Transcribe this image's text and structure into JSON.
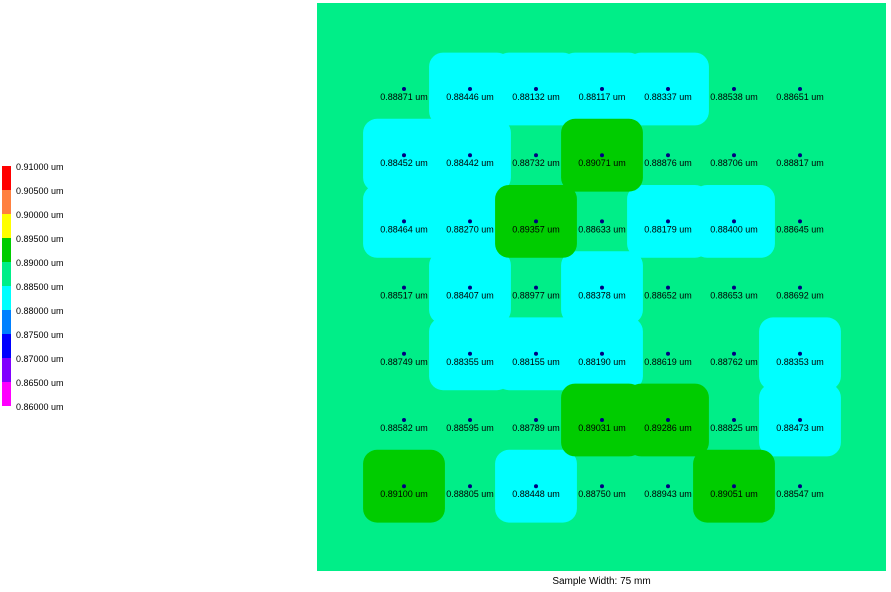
{
  "colors": {
    "scale": [
      "#ff0000",
      "#ff8040",
      "#ffff00",
      "#00cc00",
      "#00ee88",
      "#00ffff",
      "#0080ff",
      "#0000ff",
      "#8000ff",
      "#ff00ff"
    ],
    "point": "#000080"
  },
  "legend": {
    "ticks": [
      "0.91000 um",
      "0.90500 um",
      "0.90000 um",
      "0.89500 um",
      "0.89000 um",
      "0.88500 um",
      "0.88000 um",
      "0.87500 um",
      "0.87000 um",
      "0.86500 um",
      "0.86000 um"
    ]
  },
  "caption": "Sample Width: 75 mm",
  "chart_data": {
    "type": "heatmap",
    "unit": "um",
    "xlabel": "Sample Width: 75 mm",
    "color_scale": [
      0.86,
      0.91
    ],
    "rows": 7,
    "cols": 7,
    "labels": [
      [
        "0.88871 um",
        "0.88446 um",
        "0.88132 um",
        "0.88117 um",
        "0.88337 um",
        "0.88538 um",
        "0.88651 um"
      ],
      [
        "0.88452 um",
        "0.88442 um",
        "0.88732 um",
        "0.89071 um",
        "0.88876 um",
        "0.88706 um",
        "0.88817 um"
      ],
      [
        "0.88464 um",
        "0.88270 um",
        "0.89357 um",
        "0.88633 um",
        "0.88179 um",
        "0.88400 um",
        "0.88645 um"
      ],
      [
        "0.88517 um",
        "0.88407 um",
        "0.88977 um",
        "0.88378 um",
        "0.88652 um",
        "0.88653 um",
        "0.88692 um"
      ],
      [
        "0.88749 um",
        "0.88355 um",
        "0.88155 um",
        "0.88190 um",
        "0.88619 um",
        "0.88762 um",
        "0.88353 um"
      ],
      [
        "0.88582 um",
        "0.88595 um",
        "0.88789 um",
        "0.89031 um",
        "0.89286 um",
        "0.88825 um",
        "0.88473 um"
      ],
      [
        "0.89100 um",
        "0.88805 um",
        "0.88448 um",
        "0.88750 um",
        "0.88943 um",
        "0.89051 um",
        "0.88547 um"
      ]
    ],
    "values": [
      [
        0.88871,
        0.88446,
        0.88132,
        0.88117,
        0.88337,
        0.88538,
        0.88651
      ],
      [
        0.88452,
        0.88442,
        0.88732,
        0.89071,
        0.88876,
        0.88706,
        0.88817
      ],
      [
        0.88464,
        0.8827,
        0.89357,
        0.88633,
        0.88179,
        0.884,
        0.88645
      ],
      [
        0.88517,
        0.88407,
        0.88977,
        0.88378,
        0.88652,
        0.88653,
        0.88692
      ],
      [
        0.88749,
        0.88355,
        0.88155,
        0.8819,
        0.88619,
        0.88762,
        0.88353
      ],
      [
        0.88582,
        0.88595,
        0.88789,
        0.89031,
        0.89286,
        0.88825,
        0.88473
      ],
      [
        0.891,
        0.88805,
        0.88448,
        0.8875,
        0.88943,
        0.89051,
        0.88547
      ]
    ]
  }
}
